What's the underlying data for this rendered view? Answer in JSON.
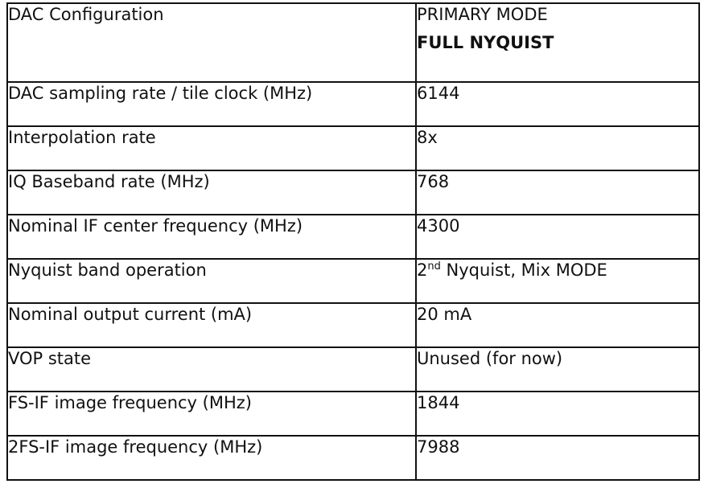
{
  "table": {
    "title": "DAC Configuration",
    "mode_line1": "PRIMARY MODE",
    "mode_line2": "FULL NYQUIST",
    "rows": [
      {
        "label": "DAC sampling rate / tile clock (MHz)",
        "value": "6144"
      },
      {
        "label": "Interpolation rate",
        "value": "8x"
      },
      {
        "label": "IQ Baseband rate (MHz)",
        "value": "768"
      },
      {
        "label": "Nominal IF center frequency (MHz)",
        "value": "4300"
      },
      {
        "label": "Nyquist band operation",
        "value_num": "2",
        "value_sup": "nd",
        "value_rest": " Nyquist, Mix MODE"
      },
      {
        "label": "Nominal output current (mA)",
        "value": "20 mA"
      },
      {
        "label": "VOP state",
        "value": "Unused (for now)"
      },
      {
        "label": "FS-IF image frequency (MHz)",
        "value": "1844"
      },
      {
        "label": "2FS-IF image frequency (MHz)",
        "value": "7988"
      }
    ]
  }
}
